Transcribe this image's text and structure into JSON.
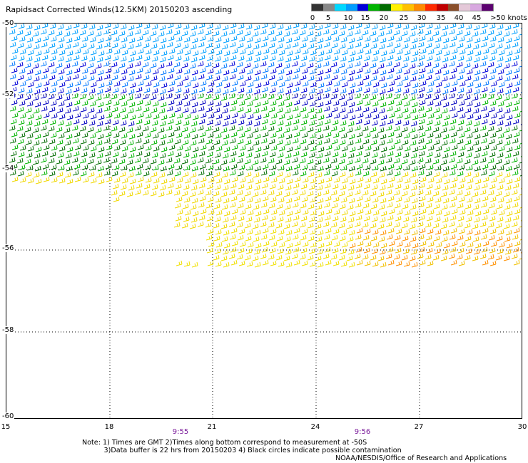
{
  "title": "Rapidsact Corrected Winds(12.5KM) 20150203 ascending",
  "colorbar": {
    "labels": [
      "0",
      "5",
      "10",
      "15",
      "20",
      "25",
      "30",
      "35",
      "40",
      "45",
      ">50 knots"
    ],
    "colors": [
      "#333333",
      "#888888",
      "#00d8ff",
      "#009cff",
      "#0000d8",
      "#00b400",
      "#006c00",
      "#fff000",
      "#ffc000",
      "#ff8a00",
      "#ff2a00",
      "#c00000",
      "#8a4f2a",
      "#e4c8d8",
      "#d8a8e0",
      "#5c0070"
    ]
  },
  "map": {
    "lat_labels": [
      "-50",
      "-52",
      "-54",
      "-56",
      "-58",
      "-60"
    ],
    "lon_labels": [
      "15",
      "18",
      "21",
      "24",
      "27",
      "30"
    ],
    "time_labels": [
      "9:55",
      "9:56"
    ]
  },
  "notes": {
    "line1": "Note: 1) Times are GMT 2)Times along bottom correspond to measurement at -50S",
    "line2": "3)Data buffer is 22 hrs from 20150203 4) Black circles indicate possible contamination",
    "credit": "NOAA/NESDIS/Office of Research and Applications"
  }
}
